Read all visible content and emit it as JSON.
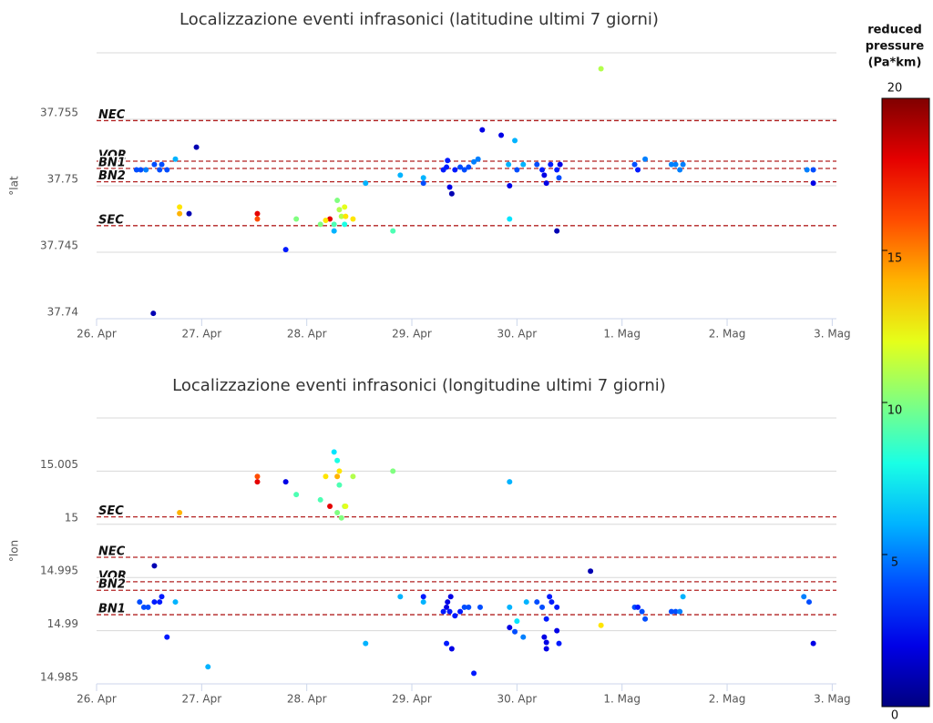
{
  "chart_data": [
    {
      "type": "scatter",
      "title": "Localizzazione eventi infrasonici (latitudine ultimi 7 giorni)",
      "y_label": "°lat",
      "xlim": [
        0,
        7.04
      ],
      "xticks": [
        {
          "value": 0,
          "label": "26. Apr"
        },
        {
          "value": 1,
          "label": "27. Apr"
        },
        {
          "value": 2,
          "label": "28. Apr"
        },
        {
          "value": 3,
          "label": "29. Apr"
        },
        {
          "value": 4,
          "label": "30. Apr"
        },
        {
          "value": 5,
          "label": "1. Mag"
        },
        {
          "value": 6,
          "label": "2. Mag"
        },
        {
          "value": 7,
          "label": "3. Mag"
        }
      ],
      "ylim": [
        37.74,
        37.76
      ],
      "yticks": [
        37.74,
        37.745,
        37.75,
        37.755,
        37.76
      ],
      "grid": true,
      "reference_lines": [
        {
          "name": "NEC",
          "value": 37.7549
        },
        {
          "name": "VOR",
          "value": 37.75185
        },
        {
          "name": "BN1",
          "value": 37.7513
        },
        {
          "name": "BN2",
          "value": 37.7503
        },
        {
          "name": "SEC",
          "value": 37.747
        }
      ],
      "series": [
        {
          "x": [
            0.38,
            0.42,
            0.47,
            0.55,
            0.6,
            0.62,
            0.67,
            0.75,
            0.95,
            0.54,
            0.79,
            0.79,
            0.88,
            1.53,
            1.53,
            1.8,
            1.9,
            2.13,
            2.22,
            2.18,
            2.29,
            2.31,
            2.33,
            2.36,
            2.37,
            2.44,
            2.26,
            2.26,
            2.36,
            2.56,
            2.82,
            2.89,
            3.11,
            3.11,
            3.3,
            3.33,
            3.34,
            3.36,
            3.38,
            3.41,
            3.46,
            3.5,
            3.54,
            3.59,
            3.63,
            3.67,
            3.85,
            3.92,
            3.93,
            3.93,
            3.98,
            4.0,
            4.06,
            4.19,
            4.24,
            4.26,
            4.28,
            4.32,
            4.38,
            4.38,
            4.4,
            4.41,
            4.8,
            5.12,
            5.15,
            5.22,
            5.47,
            5.51,
            5.55,
            5.58,
            6.76,
            6.82,
            6.82
          ],
          "values": [
            37.7512,
            37.7512,
            37.7512,
            37.7516,
            37.7512,
            37.7516,
            37.7512,
            37.752,
            37.7529,
            37.7404,
            37.7484,
            37.7479,
            37.7479,
            37.7479,
            37.7475,
            37.7452,
            37.7475,
            37.7471,
            37.7475,
            37.7474,
            37.7489,
            37.7482,
            37.7477,
            37.7484,
            37.7477,
            37.7475,
            37.7466,
            37.7471,
            37.7471,
            37.7502,
            37.7466,
            37.7508,
            37.7506,
            37.7502,
            37.7512,
            37.7514,
            37.7519,
            37.7499,
            37.7494,
            37.7512,
            37.7514,
            37.7512,
            37.7514,
            37.7518,
            37.752,
            37.7542,
            37.7538,
            37.7516,
            37.75,
            37.7475,
            37.7534,
            37.7512,
            37.7516,
            37.7516,
            37.7512,
            37.7508,
            37.7502,
            37.7516,
            37.7512,
            37.7466,
            37.7506,
            37.7516,
            37.7588,
            37.7516,
            37.7512,
            37.752,
            37.7516,
            37.7516,
            37.7512,
            37.7516,
            37.7512,
            37.7512,
            37.7502
          ],
          "pressure": [
            4,
            4,
            5,
            4,
            4,
            4,
            4,
            6,
            1,
            1,
            13,
            14,
            1,
            18,
            16,
            3,
            10,
            10,
            18,
            13,
            10,
            11,
            11,
            12,
            13,
            13,
            6,
            9,
            8,
            6,
            9,
            6,
            6,
            4,
            3,
            3,
            3,
            2,
            1,
            3,
            4,
            4,
            4,
            5,
            5,
            2,
            2,
            6,
            2,
            7,
            6,
            4,
            6,
            4,
            3,
            2,
            2,
            3,
            3,
            1,
            4,
            2,
            11,
            4,
            3,
            5,
            5,
            5,
            5,
            5,
            5,
            4,
            2
          ]
        }
      ]
    },
    {
      "type": "scatter",
      "title": "Localizzazione eventi infrasonici (longitudine ultimi 7 giorni)",
      "y_label": "°lon",
      "xlim": [
        0,
        7.04
      ],
      "xticks": [
        {
          "value": 0,
          "label": "26. Apr"
        },
        {
          "value": 1,
          "label": "27. Apr"
        },
        {
          "value": 2,
          "label": "28. Apr"
        },
        {
          "value": 3,
          "label": "29. Apr"
        },
        {
          "value": 4,
          "label": "30. Apr"
        },
        {
          "value": 5,
          "label": "1. Mag"
        },
        {
          "value": 6,
          "label": "2. Mag"
        },
        {
          "value": 7,
          "label": "3. Mag"
        }
      ],
      "ylim": [
        14.985,
        15.01
      ],
      "yticks": [
        14.985,
        14.99,
        14.995,
        15,
        15.005,
        15.01
      ],
      "grid": true,
      "reference_lines": [
        {
          "name": "SEC",
          "value": 15.0007
        },
        {
          "name": "NEC",
          "value": 14.9969
        },
        {
          "name": "VOR",
          "value": 14.9946
        },
        {
          "name": "BN2",
          "value": 14.9938
        },
        {
          "name": "BN1",
          "value": 14.9915
        }
      ],
      "series": [
        {
          "x": [
            0.41,
            0.45,
            0.49,
            0.55,
            0.6,
            0.62,
            0.75,
            0.55,
            0.67,
            1.06,
            0.79,
            1.53,
            1.53,
            1.8,
            1.9,
            2.13,
            2.18,
            2.22,
            2.26,
            2.29,
            2.29,
            2.31,
            2.29,
            2.33,
            2.36,
            2.37,
            2.44,
            2.31,
            2.82,
            2.56,
            2.89,
            3.11,
            3.11,
            3.3,
            3.33,
            3.34,
            3.36,
            3.37,
            3.41,
            3.46,
            3.5,
            3.54,
            3.33,
            3.38,
            3.59,
            3.65,
            3.93,
            3.93,
            3.98,
            4.0,
            3.93,
            4.06,
            4.09,
            4.19,
            4.24,
            4.26,
            4.28,
            4.28,
            4.28,
            4.31,
            4.33,
            4.38,
            4.38,
            4.4,
            4.7,
            4.8,
            5.12,
            5.15,
            5.19,
            5.22,
            5.47,
            5.51,
            5.55,
            5.58,
            6.73,
            6.78,
            6.82
          ],
          "values": [
            14.9927,
            14.9922,
            14.9922,
            14.9927,
            14.9927,
            14.9932,
            14.9927,
            14.9961,
            14.9894,
            14.9866,
            15.0011,
            15.0045,
            15.004,
            15.004,
            15.0028,
            15.0023,
            15.0045,
            15.0017,
            15.0068,
            15.006,
            15.0045,
            15.0037,
            15.0011,
            15.0006,
            15.0017,
            15.0017,
            15.0045,
            15.005,
            15.005,
            14.9888,
            14.9932,
            14.9932,
            14.9927,
            14.9918,
            14.9922,
            14.9927,
            14.9918,
            14.9932,
            14.9914,
            14.9918,
            14.9922,
            14.9922,
            14.9888,
            14.9883,
            14.986,
            14.9922,
            14.9922,
            14.9903,
            14.9899,
            14.9909,
            15.004,
            14.9894,
            14.9927,
            14.9927,
            14.9922,
            14.9894,
            14.9889,
            14.9883,
            14.9911,
            14.9932,
            14.9927,
            14.9922,
            14.99,
            14.9888,
            14.9956,
            14.9905,
            14.9922,
            14.9922,
            14.9918,
            14.9911,
            14.9918,
            14.9918,
            14.9918,
            14.9932,
            14.9932,
            14.9927,
            14.9888
          ],
          "pressure": [
            4,
            4,
            4,
            3,
            3,
            3,
            6,
            1,
            3,
            6,
            14,
            16,
            18,
            2,
            9,
            9,
            13,
            18,
            7,
            8,
            14,
            9,
            10,
            10,
            11,
            12,
            11,
            13,
            10,
            6,
            6,
            3,
            6,
            3,
            2,
            2,
            3,
            2,
            3,
            3,
            4,
            4,
            3,
            2,
            3,
            4,
            6,
            2,
            4,
            7,
            6,
            5,
            6,
            4,
            4,
            2,
            2,
            2,
            3,
            3,
            3,
            3,
            2,
            3,
            1,
            13,
            4,
            3,
            4,
            4,
            4,
            4,
            5,
            6,
            5,
            4,
            2
          ]
        }
      ]
    }
  ],
  "colorbar": {
    "title": [
      "reduced",
      "pressure",
      "(Pa*km)"
    ],
    "lim": [
      0,
      20
    ],
    "ticks": [
      0,
      5,
      10,
      15,
      20
    ]
  }
}
